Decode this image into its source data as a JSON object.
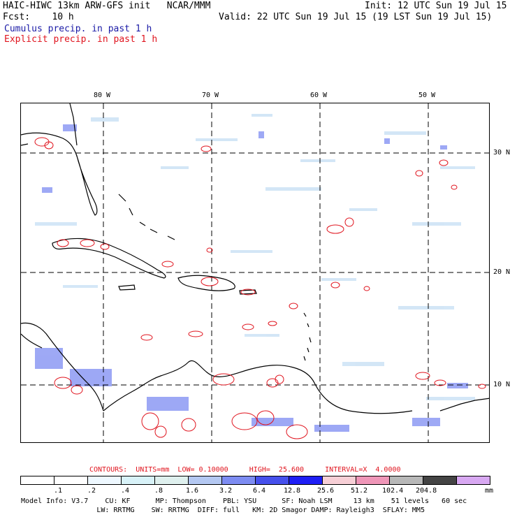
{
  "header": {
    "title": "HAIC-HIWC 13km ARW-GFS init   NCAR/MMM",
    "init": "Init: 12 UTC Sun 19 Jul 15",
    "fcst": "Fcst:    10 h",
    "valid": "Valid: 22 UTC Sun 19 Jul 15 (19 LST Sun 19 Jul 15)",
    "cumulus": "Cumulus precip. in past 1 h",
    "explicit": "Explicit precip. in past 1 h",
    "cumulus_color": "#1a1aa6",
    "explicit_color": "#e0141e"
  },
  "map": {
    "lon_labels": [
      "80 W",
      "70 W",
      "60 W",
      "50 W"
    ],
    "lat_labels": [
      "30 N",
      "20 N",
      "10 N"
    ]
  },
  "contours": {
    "label": "CONTOURS:  UNITS=mm  LOW= 0.10000     HIGH=  25.600     INTERVAL=X  4.0000"
  },
  "colorbar": {
    "unit": "mm",
    "ticks": [
      ".1",
      ".2",
      ".4",
      ".8",
      "1.6",
      "3.2",
      "6.4",
      "12.8",
      "25.6",
      "51.2",
      "102.4",
      "204.8"
    ],
    "colors": [
      "#ffffff",
      "#ffffff",
      "#eef8ff",
      "#d8f2f8",
      "#dff0ee",
      "#b4c8f2",
      "#7d8cf2",
      "#4650ec",
      "#1e1ef5",
      "#f7cfd6",
      "#ef96b8",
      "#b8b8b8",
      "#444444",
      "#d8a8f2"
    ]
  },
  "footer": {
    "line1": "Model Info: V3.7    CU: KF      MP: Thompson    PBL: YSU      SF: Noah LSM     13 km    51 levels   60 sec",
    "line2": "                  LW: RRTMG    SW: RRTMG  DIFF: full   KM: 2D Smagor DAMP: Rayleigh3  SFLAY: MM5"
  }
}
